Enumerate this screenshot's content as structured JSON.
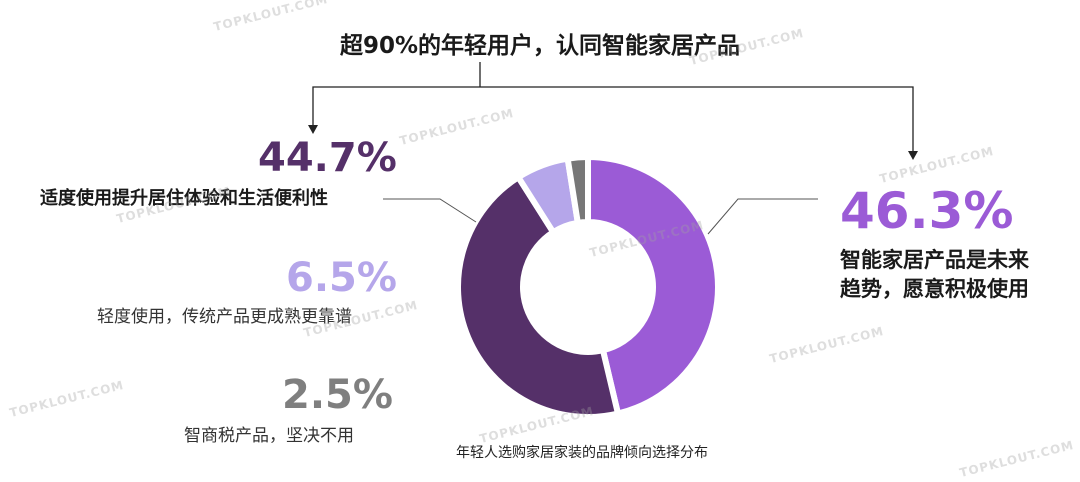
{
  "headline": "超90%的年轻用户，认同智能家居产品",
  "caption": "年轻人选购家居家装的品牌倾向选择分布",
  "watermark": "TOPKLOUT.COM",
  "colors": {
    "smart_home": "#9b5bd6",
    "moderate": "#553069",
    "light": "#b5a6ea",
    "ai_tax": "#777777",
    "text_dark": "#1a1a1a",
    "gray_text": "#7f7f7f"
  },
  "chart_data": {
    "type": "pie",
    "hole": true,
    "title": "年轻人选购家居家装的品牌倾向选择分布",
    "slices": [
      {
        "label": "智能家居产品是未来趋势，愿意积极使用",
        "value": 46.3,
        "display": "46.3%",
        "color": "#9b5bd6"
      },
      {
        "label": "适度使用提升居住体验和生活便利性",
        "value": 44.7,
        "display": "44.7%",
        "color": "#553069"
      },
      {
        "label": "轻度使用，传统产品更成熟更靠谱",
        "value": 6.5,
        "display": "6.5%",
        "color": "#b5a6ea"
      },
      {
        "label": "智商税产品，坚决不用",
        "value": 2.5,
        "display": "2.5%",
        "color": "#777777"
      }
    ]
  },
  "labels": {
    "right_pct": "46.3%",
    "right_desc_line1": "智能家居产品是未来",
    "right_desc_line2": "趋势，愿意积极使用",
    "moderate_pct": "44.7%",
    "moderate_desc": "适度使用提升居住体验和生活便利性",
    "light_pct": "6.5%",
    "light_desc": "轻度使用，传统产品更成熟更靠谱",
    "tax_pct": "2.5%",
    "tax_desc": "智商税产品，坚决不用"
  }
}
